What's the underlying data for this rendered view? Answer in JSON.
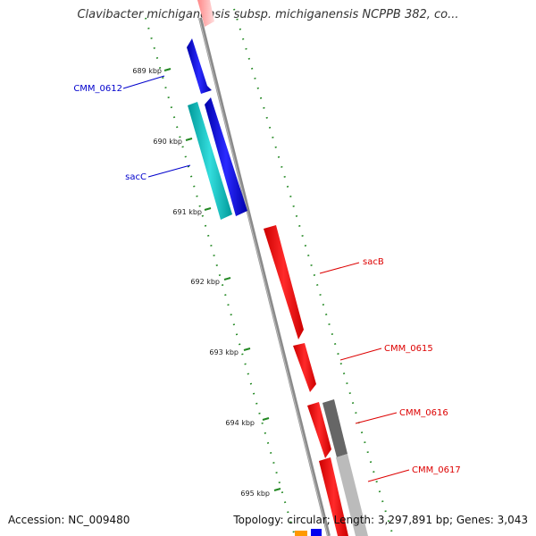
{
  "title": "Clavibacter michiganensis subsp. michiganensis NCPPB 382, co...",
  "footer": {
    "accession": "Accession: NC_009480",
    "summary": "Topology: circular; Length: 3,297,891 bp; Genes: 3,043"
  },
  "ticks": [
    {
      "label": "689 kbp"
    },
    {
      "label": "690 kbp"
    },
    {
      "label": "691 kbp"
    },
    {
      "label": "692 kbp"
    },
    {
      "label": "693 kbp"
    },
    {
      "label": "694 kbp"
    },
    {
      "label": "695 kbp"
    }
  ],
  "genes": [
    {
      "label": "CMM_0612",
      "strand": "reverse",
      "color": "#0000ee"
    },
    {
      "label": "sacC",
      "strand": "reverse",
      "color": "#00bbbb"
    },
    {
      "label": "sacB",
      "strand": "forward",
      "color": "#ee0000"
    },
    {
      "label": "CMM_0615",
      "strand": "forward",
      "color": "#ee0000"
    },
    {
      "label": "CMM_0616",
      "strand": "forward",
      "color": "#ee0000"
    },
    {
      "label": "CMM_0617",
      "strand": "forward",
      "color": "#ee0000"
    }
  ],
  "colors": {
    "forward_gene": "#ee0000",
    "reverse_gene": "#0000ee",
    "rrna": "#00bbbb",
    "backbone": "#888888",
    "ticks": "#228822",
    "hit_dark": "#666666",
    "hit_light": "#bbbbbb",
    "other": "#ff9900"
  }
}
